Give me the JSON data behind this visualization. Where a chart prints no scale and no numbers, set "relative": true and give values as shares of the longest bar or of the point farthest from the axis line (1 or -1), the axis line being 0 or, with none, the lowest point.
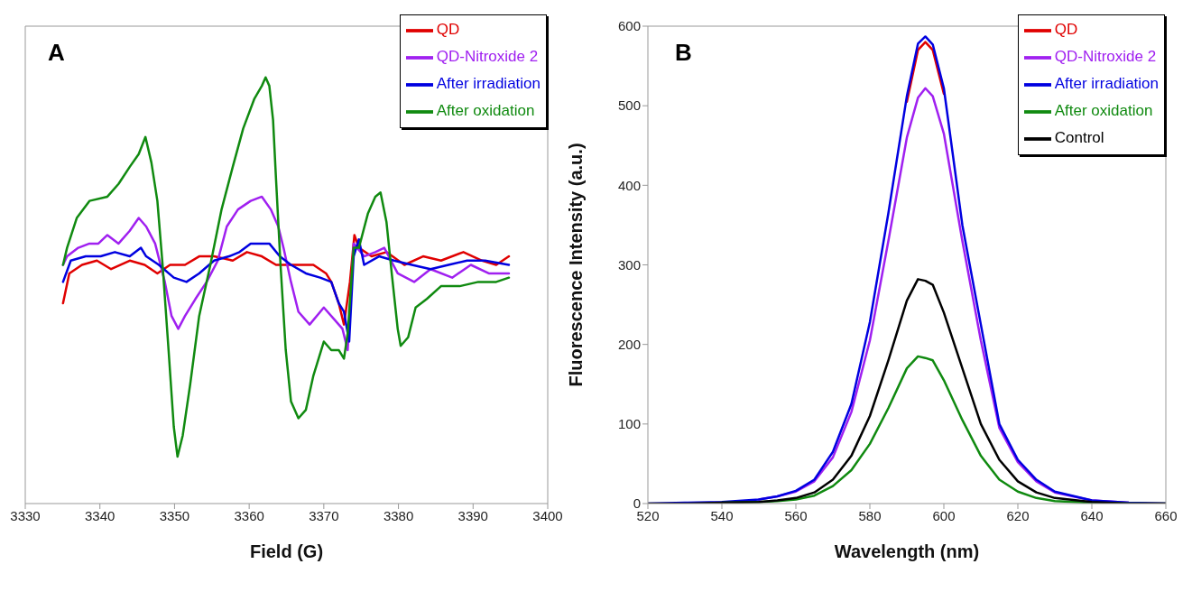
{
  "chart_data": [
    {
      "type": "line",
      "relative": true,
      "xlabel": "Field (G)",
      "annotations": [
        "A"
      ],
      "xlim": [
        3330,
        3400
      ],
      "xticks": [
        3330,
        3340,
        3350,
        3360,
        3370,
        3380,
        3390,
        3400
      ],
      "tick_labels": "x",
      "legend": "top right",
      "grid": false,
      "series": [
        {
          "name": "QD",
          "color": "#e00000",
          "x": [
            3335.06,
            3335.9,
            3337.6,
            3339.6,
            3341.5,
            3344,
            3346,
            3347.7,
            3349.4,
            3351.4,
            3353.3,
            3355.3,
            3357.8,
            3359.7,
            3361.7,
            3363.6,
            3366.1,
            3368.6,
            3370.3,
            3371,
            3372,
            3372.7,
            3373.5,
            3374.1,
            3374.7,
            3376.4,
            3378.4,
            3380.8,
            3383.3,
            3385.7,
            3388.7,
            3391.2,
            3393.1,
            3394.8
          ],
          "values": [
            0.47,
            0.54,
            0.56,
            0.57,
            0.55,
            0.57,
            0.56,
            0.54,
            0.56,
            0.56,
            0.58,
            0.58,
            0.57,
            0.59,
            0.58,
            0.56,
            0.56,
            0.56,
            0.54,
            0.52,
            0.47,
            0.42,
            0.52,
            0.63,
            0.6,
            0.58,
            0.59,
            0.56,
            0.58,
            0.57,
            0.59,
            0.57,
            0.56,
            0.58
          ]
        },
        {
          "name": "QD-Nitroxide 2",
          "color": "#a020f0",
          "x": [
            3335.06,
            3335.6,
            3337.1,
            3338.6,
            3339.8,
            3341,
            3342.5,
            3344,
            3345.2,
            3346.2,
            3347.4,
            3348.7,
            3349.6,
            3350.5,
            3351.4,
            3352.8,
            3354.3,
            3355.8,
            3357,
            3358.5,
            3360.2,
            3361.7,
            3362.9,
            3363.9,
            3364.6,
            3365.6,
            3366.6,
            3368.1,
            3370,
            3371.5,
            3372.5,
            3373.2,
            3374,
            3375.4,
            3376.9,
            3378.1,
            3379.9,
            3382.1,
            3384.3,
            3387.2,
            3389.7,
            3392.1,
            3394.8
          ],
          "values": [
            0.56,
            0.58,
            0.6,
            0.61,
            0.61,
            0.63,
            0.61,
            0.64,
            0.67,
            0.65,
            0.61,
            0.52,
            0.44,
            0.41,
            0.44,
            0.48,
            0.52,
            0.57,
            0.65,
            0.69,
            0.71,
            0.72,
            0.69,
            0.65,
            0.6,
            0.52,
            0.45,
            0.42,
            0.46,
            0.43,
            0.41,
            0.36,
            0.61,
            0.58,
            0.59,
            0.6,
            0.54,
            0.52,
            0.55,
            0.53,
            0.56,
            0.54,
            0.54
          ]
        },
        {
          "name": "After irradiation",
          "color": "#0000e0",
          "x": [
            3335.06,
            3336.1,
            3338.1,
            3340.1,
            3342,
            3344,
            3345.5,
            3346.2,
            3347.9,
            3349.9,
            3351.6,
            3353.3,
            3355.3,
            3357.3,
            3358.7,
            3360.2,
            3362.7,
            3364.1,
            3365.6,
            3367.6,
            3369.5,
            3371,
            3372,
            3372.7,
            3373.4,
            3374,
            3374.7,
            3375.4,
            3377.4,
            3379.4,
            3381.8,
            3384.3,
            3386.7,
            3389.2,
            3391.6,
            3394.8
          ],
          "values": [
            0.52,
            0.57,
            0.58,
            0.58,
            0.59,
            0.58,
            0.6,
            0.58,
            0.56,
            0.53,
            0.52,
            0.54,
            0.57,
            0.58,
            0.59,
            0.61,
            0.61,
            0.58,
            0.56,
            0.54,
            0.53,
            0.52,
            0.47,
            0.45,
            0.38,
            0.58,
            0.62,
            0.56,
            0.58,
            0.57,
            0.56,
            0.55,
            0.56,
            0.57,
            0.57,
            0.56
          ]
        },
        {
          "name": "After oxidation",
          "color": "#108a10",
          "x": [
            3335.06,
            3335.6,
            3336.9,
            3338.6,
            3341,
            3342.5,
            3344,
            3345.2,
            3346.1,
            3346.9,
            3347.7,
            3348.4,
            3349.2,
            3349.9,
            3350.4,
            3351.1,
            3352.1,
            3353.3,
            3354.8,
            3356.3,
            3357.8,
            3359.2,
            3360.7,
            3361.7,
            3362.2,
            3362.7,
            3363.2,
            3363.6,
            3364.2,
            3364.9,
            3365.6,
            3366.6,
            3367.6,
            3368.6,
            3370,
            3371,
            3372,
            3372.7,
            3373.2,
            3374,
            3374.7,
            3375.9,
            3376.9,
            3377.6,
            3378.4,
            3379.1,
            3379.9,
            3380.3,
            3381.3,
            3382.3,
            3383.8,
            3385.7,
            3388.2,
            3390.7,
            3393.1,
            3394.8
          ],
          "values": [
            0.56,
            0.6,
            0.67,
            0.71,
            0.72,
            0.75,
            0.79,
            0.82,
            0.86,
            0.8,
            0.71,
            0.56,
            0.36,
            0.18,
            0.11,
            0.16,
            0.28,
            0.44,
            0.56,
            0.69,
            0.79,
            0.88,
            0.95,
            0.98,
            1,
            0.98,
            0.9,
            0.76,
            0.56,
            0.36,
            0.24,
            0.2,
            0.22,
            0.3,
            0.38,
            0.36,
            0.36,
            0.34,
            0.4,
            0.6,
            0.6,
            0.68,
            0.72,
            0.73,
            0.66,
            0.54,
            0.41,
            0.37,
            0.39,
            0.46,
            0.48,
            0.51,
            0.51,
            0.52,
            0.52,
            0.53
          ]
        }
      ]
    },
    {
      "type": "line",
      "xlabel": "Wavelength (nm)",
      "ylabel": "Fluorescence Intensity (a.u.)",
      "annotations": [
        "B"
      ],
      "xlim": [
        520,
        660
      ],
      "xticks": [
        520,
        540,
        560,
        580,
        600,
        620,
        640,
        660
      ],
      "ylim": [
        0,
        600
      ],
      "yticks": [
        0,
        100,
        200,
        300,
        400,
        500,
        600
      ],
      "legend": "top right",
      "grid": false,
      "x": [
        520,
        530,
        540,
        550,
        555,
        560,
        565,
        570,
        575,
        580,
        585,
        590,
        593,
        595,
        597,
        600,
        605,
        610,
        615,
        620,
        625,
        630,
        640,
        650,
        660
      ],
      "series": [
        {
          "name": "QD",
          "color": "#e00000",
          "values": [
            null,
            null,
            null,
            null,
            null,
            null,
            null,
            null,
            null,
            null,
            null,
            505,
            570,
            580,
            570,
            515,
            null,
            null,
            null,
            null,
            null,
            null,
            null,
            null,
            null
          ]
        },
        {
          "name": "QD-Nitroxide 2",
          "color": "#a020f0",
          "values": [
            null,
            null,
            null,
            5,
            9,
            15,
            28,
            58,
            115,
            205,
            330,
            460,
            510,
            522,
            512,
            465,
            330,
            205,
            95,
            52,
            28,
            14,
            4,
            1,
            0
          ]
        },
        {
          "name": "After irradiation",
          "color": "#0000e0",
          "values": [
            0,
            1,
            2,
            5,
            9,
            16,
            30,
            65,
            125,
            228,
            365,
            512,
            578,
            587,
            577,
            522,
            350,
            225,
            100,
            55,
            30,
            15,
            4,
            1,
            0
          ]
        },
        {
          "name": "After oxidation",
          "color": "#108a10",
          "values": [
            null,
            null,
            1,
            2,
            3,
            5,
            10,
            22,
            42,
            75,
            120,
            170,
            185,
            183,
            180,
            155,
            105,
            60,
            30,
            15,
            7,
            3,
            1,
            0,
            0
          ]
        },
        {
          "name": "Control",
          "color": "#000000",
          "values": [
            0,
            0,
            1,
            2,
            4,
            7,
            14,
            30,
            60,
            110,
            180,
            255,
            282,
            280,
            275,
            240,
            170,
            100,
            55,
            28,
            14,
            7,
            2,
            0,
            0
          ]
        }
      ]
    }
  ]
}
